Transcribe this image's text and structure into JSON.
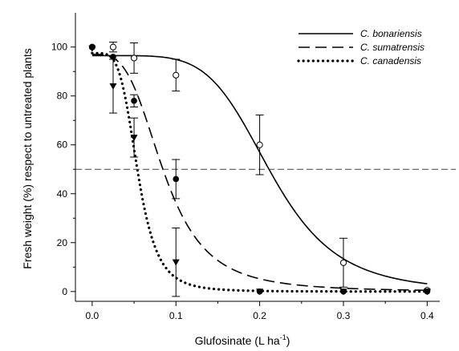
{
  "chart_data": {
    "type": "scatter",
    "title": "",
    "xlabel": "Glufosinate (L ha",
    "xlabel_sup": "-1",
    "xlabel_close": ")",
    "ylabel": "Fresh weight (%) respect to untreated plants",
    "xlim": [
      -0.02,
      0.415
    ],
    "ylim": [
      -4,
      114
    ],
    "xticks": [
      "0.0",
      "0.1",
      "0.2",
      "0.3",
      "0.4"
    ],
    "xtick_values": [
      0,
      0.1,
      0.2,
      0.3,
      0.4
    ],
    "yticks": [
      "0",
      "20",
      "40",
      "60",
      "80",
      "100"
    ],
    "ytick_values": [
      0,
      20,
      40,
      60,
      80,
      100
    ],
    "reference_line": {
      "y": 50,
      "style": "dashed"
    },
    "legend_position": "top-right",
    "series": [
      {
        "name": "C. bonariensis",
        "line_style": "solid",
        "marker": "open-circle",
        "x": [
          0,
          0.025,
          0.05,
          0.1,
          0.2,
          0.3,
          0.4
        ],
        "y": [
          100,
          100,
          95.5,
          88.5,
          60,
          11.8,
          0.5
        ],
        "err": [
          0,
          2,
          6.2,
          6.5,
          12.2,
          10,
          0
        ],
        "curve": {
          "top": 96.5,
          "ed50": 0.214,
          "slope": 5.4
        }
      },
      {
        "name": "C. sumatrensis",
        "line_style": "dashed",
        "marker": "filled-circle",
        "x": [
          0,
          0.025,
          0.05,
          0.1,
          0.2,
          0.3,
          0.4
        ],
        "y": [
          100,
          96,
          78,
          46,
          0,
          0,
          0
        ],
        "err": [
          0,
          0,
          2.5,
          8,
          0,
          0,
          0
        ],
        "curve": {
          "top": 97,
          "ed50": 0.086,
          "slope": 3.4
        }
      },
      {
        "name": "C. canadensis",
        "line_style": "dotted",
        "marker": "filled-triangle-down",
        "x": [
          0,
          0.025,
          0.05,
          0.1,
          0.2,
          0.3,
          0.4
        ],
        "y": [
          99.5,
          84,
          63,
          12,
          0,
          0,
          0
        ],
        "err": [
          0,
          11,
          8,
          14,
          0,
          0,
          0
        ],
        "curve": {
          "top": 97.5,
          "ed50": 0.0545,
          "slope": 4.6
        }
      }
    ]
  }
}
